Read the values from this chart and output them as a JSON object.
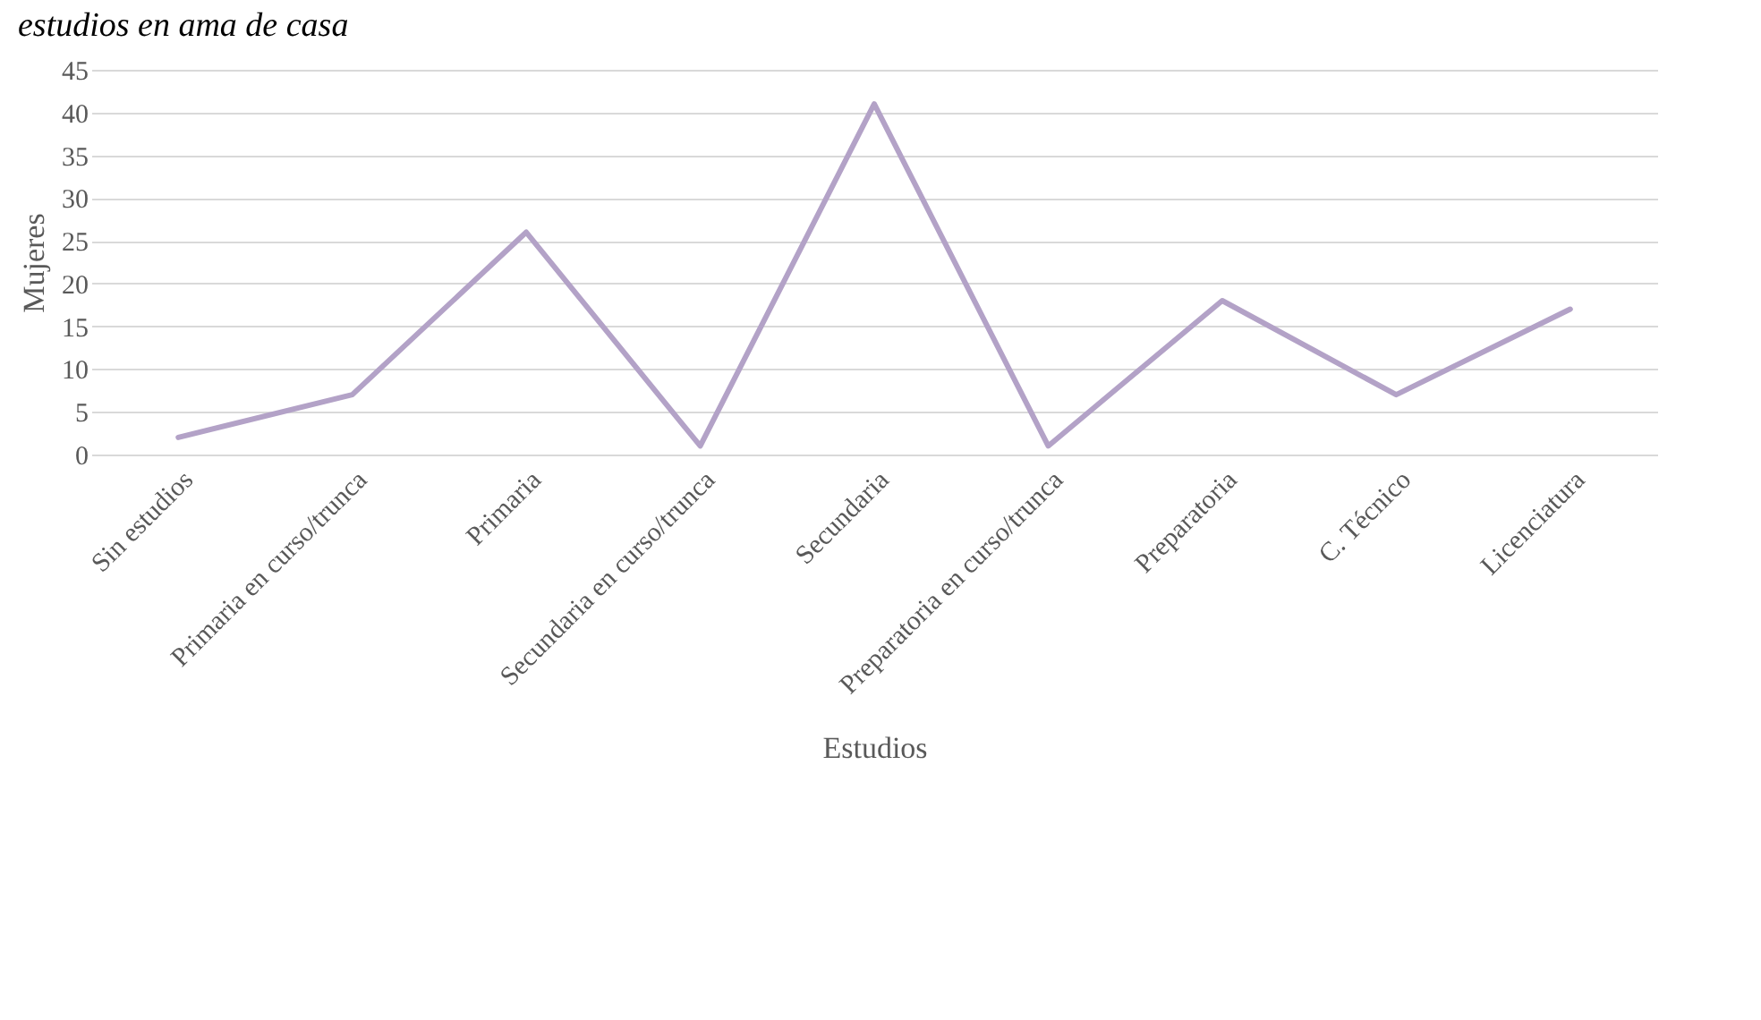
{
  "chart_data": {
    "type": "line",
    "title": "estudios en ama de casa",
    "xlabel": "Estudios",
    "ylabel": "Mujeres",
    "categories": [
      "Sin estudios",
      "Primaria en curso/trunca",
      "Primaria",
      "Secundaria en curso/trunca",
      "Secundaria",
      "Preparatoria en curso/trunca",
      "Preparatoria",
      "C. Técnico",
      "Licenciatura"
    ],
    "series": [
      {
        "color": "#b3a2c7",
        "values": [
          2,
          7,
          26,
          1,
          41,
          1,
          18,
          7,
          17
        ]
      }
    ],
    "ylim": [
      0,
      45
    ],
    "yticks": [
      0,
      5,
      10,
      15,
      20,
      25,
      30,
      35,
      40,
      45
    ],
    "grid": "y",
    "marker": "none",
    "line_style": "solid"
  }
}
